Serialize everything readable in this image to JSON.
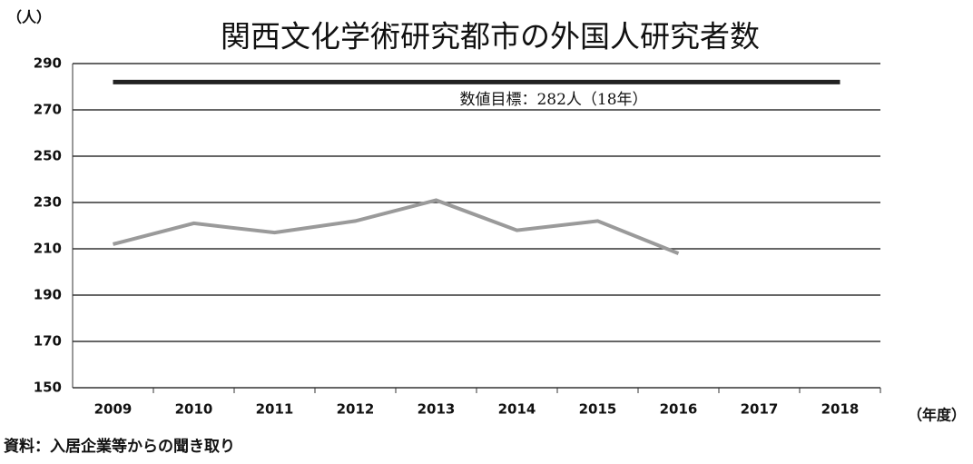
{
  "chart_data": {
    "type": "line",
    "title": "関西文化学術研究都市の外国人研究者数",
    "y_unit": "（人）",
    "x_unit": "（年度）",
    "source": "資料：入居企業等からの聞き取り",
    "categories": [
      "2009",
      "2010",
      "2011",
      "2012",
      "2013",
      "2014",
      "2015",
      "2016",
      "2017",
      "2018"
    ],
    "series": [
      {
        "color": "#9a9a9a",
        "values": [
          212,
          221,
          217,
          222,
          231,
          218,
          222,
          208,
          null,
          null
        ]
      }
    ],
    "target": 282,
    "target_color": "#222222",
    "target_label": "数値目標：282人（18年）",
    "ylim": [
      150,
      290
    ],
    "yticks": [
      150,
      170,
      190,
      210,
      230,
      250,
      270,
      290
    ],
    "grid": true
  }
}
